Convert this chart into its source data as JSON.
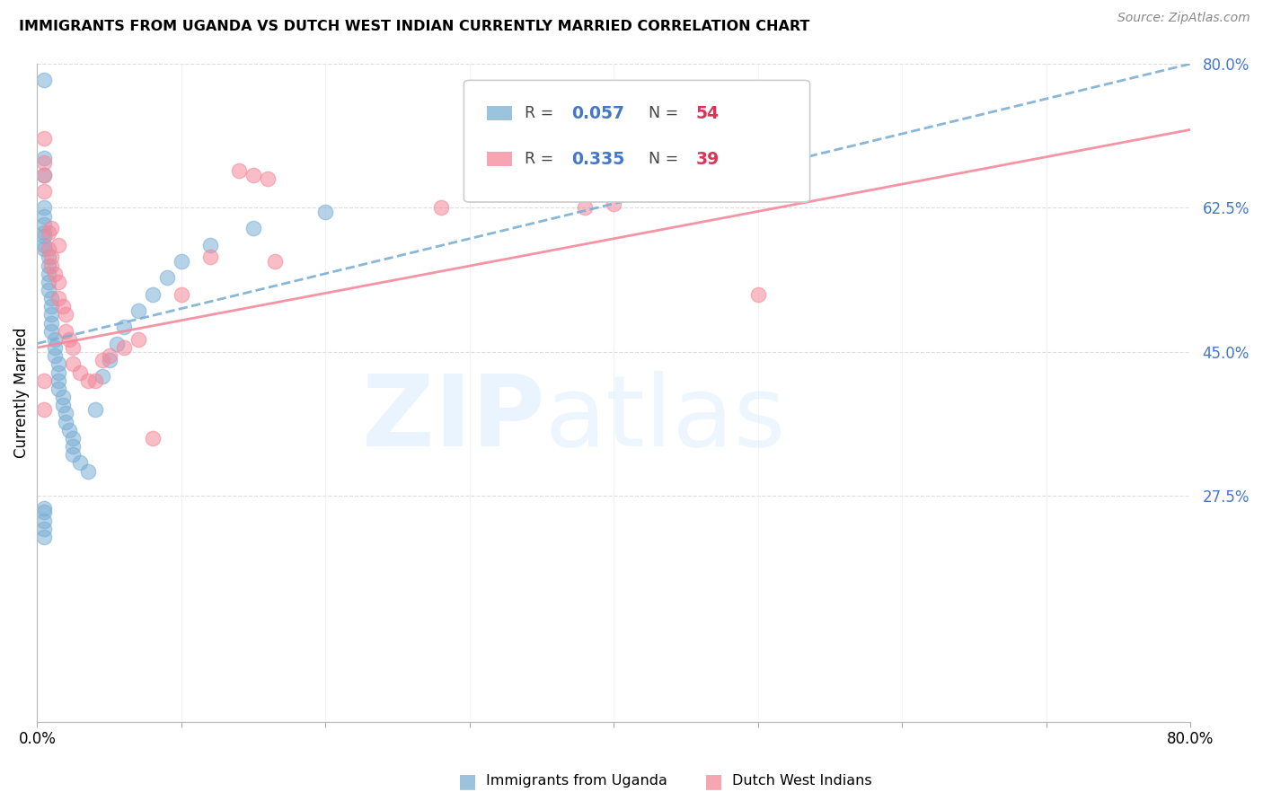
{
  "title": "IMMIGRANTS FROM UGANDA VS DUTCH WEST INDIAN CURRENTLY MARRIED CORRELATION CHART",
  "source": "Source: ZipAtlas.com",
  "ylabel": "Currently Married",
  "xlim": [
    0.0,
    0.8
  ],
  "ylim": [
    0.0,
    0.8
  ],
  "series1_color": "#7BAFD4",
  "series2_color": "#F4889A",
  "series1_label": "Immigrants from Uganda",
  "series2_label": "Dutch West Indians",
  "series1_R": 0.057,
  "series1_N": 54,
  "series2_R": 0.335,
  "series2_N": 39,
  "legend_R_color": "#4477CC",
  "legend_N_color": "#DD3355",
  "background_color": "#ffffff",
  "grid_color": "#dddddd",
  "yticks_right": [
    0.275,
    0.45,
    0.625,
    0.8
  ],
  "ytick_labels_right": [
    "27.5%",
    "45.0%",
    "62.5%",
    "80.0%"
  ],
  "trendline1_x0": 0.0,
  "trendline1_y0": 0.46,
  "trendline1_x1": 0.8,
  "trendline1_y1": 0.8,
  "trendline2_x0": 0.0,
  "trendline2_y0": 0.455,
  "trendline2_x1": 0.8,
  "trendline2_y1": 0.72,
  "series1_x": [
    0.005,
    0.005,
    0.005,
    0.005,
    0.005,
    0.005,
    0.005,
    0.005,
    0.005,
    0.005,
    0.008,
    0.008,
    0.008,
    0.008,
    0.008,
    0.01,
    0.01,
    0.01,
    0.01,
    0.01,
    0.012,
    0.012,
    0.012,
    0.015,
    0.015,
    0.015,
    0.015,
    0.018,
    0.018,
    0.02,
    0.02,
    0.022,
    0.025,
    0.025,
    0.025,
    0.03,
    0.035,
    0.04,
    0.045,
    0.05,
    0.055,
    0.06,
    0.07,
    0.08,
    0.09,
    0.1,
    0.12,
    0.15,
    0.2,
    0.005,
    0.005,
    0.005,
    0.005,
    0.005
  ],
  "series1_y": [
    0.78,
    0.685,
    0.665,
    0.625,
    0.615,
    0.605,
    0.595,
    0.59,
    0.58,
    0.575,
    0.565,
    0.555,
    0.545,
    0.535,
    0.525,
    0.515,
    0.505,
    0.495,
    0.485,
    0.475,
    0.465,
    0.455,
    0.445,
    0.435,
    0.425,
    0.415,
    0.405,
    0.395,
    0.385,
    0.375,
    0.365,
    0.355,
    0.345,
    0.335,
    0.325,
    0.315,
    0.305,
    0.38,
    0.42,
    0.44,
    0.46,
    0.48,
    0.5,
    0.52,
    0.54,
    0.56,
    0.58,
    0.6,
    0.62,
    0.26,
    0.255,
    0.245,
    0.235,
    0.225
  ],
  "series2_x": [
    0.005,
    0.005,
    0.005,
    0.005,
    0.005,
    0.008,
    0.008,
    0.01,
    0.01,
    0.012,
    0.015,
    0.015,
    0.018,
    0.02,
    0.02,
    0.022,
    0.025,
    0.025,
    0.03,
    0.035,
    0.04,
    0.045,
    0.05,
    0.06,
    0.07,
    0.08,
    0.1,
    0.12,
    0.14,
    0.15,
    0.16,
    0.165,
    0.28,
    0.4,
    0.5,
    0.005,
    0.01,
    0.015,
    0.38
  ],
  "series2_y": [
    0.71,
    0.68,
    0.665,
    0.645,
    0.415,
    0.595,
    0.575,
    0.565,
    0.555,
    0.545,
    0.535,
    0.515,
    0.505,
    0.495,
    0.475,
    0.465,
    0.455,
    0.435,
    0.425,
    0.415,
    0.415,
    0.44,
    0.445,
    0.455,
    0.465,
    0.345,
    0.52,
    0.565,
    0.67,
    0.665,
    0.66,
    0.56,
    0.625,
    0.63,
    0.52,
    0.38,
    0.6,
    0.58,
    0.625
  ]
}
